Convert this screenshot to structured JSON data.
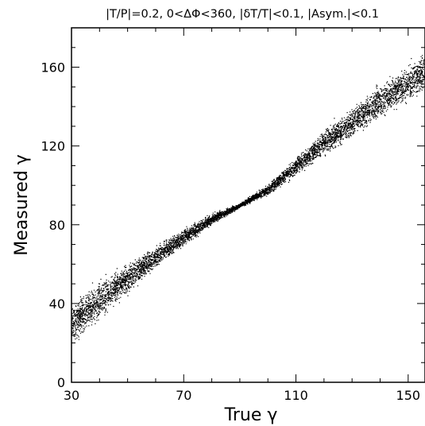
{
  "chart_data": {
    "type": "scatter",
    "title": "|T/P|=0.2, 0<ΔΦ<360, |δT/T|<0.1, |Asym.|<0.1",
    "xlabel": "True γ",
    "ylabel": "Measured γ",
    "xlim": [
      30,
      156
    ],
    "ylim": [
      0,
      180
    ],
    "xticks": [
      30,
      70,
      110,
      150
    ],
    "yticks": [
      0,
      40,
      80,
      120,
      160
    ],
    "x_minor_step": 10,
    "y_minor_step": 10,
    "grid": false,
    "legend": "none",
    "point_color": "#000000",
    "band": [
      {
        "x": 30,
        "center": 30,
        "halfwidth": 9
      },
      {
        "x": 40,
        "center": 42,
        "halfwidth": 9
      },
      {
        "x": 50,
        "center": 53,
        "halfwidth": 7
      },
      {
        "x": 60,
        "center": 64,
        "halfwidth": 5
      },
      {
        "x": 70,
        "center": 74,
        "halfwidth": 4
      },
      {
        "x": 80,
        "center": 83,
        "halfwidth": 2.5
      },
      {
        "x": 90,
        "center": 90,
        "halfwidth": 1
      },
      {
        "x": 100,
        "center": 98,
        "halfwidth": 2.5
      },
      {
        "x": 110,
        "center": 110,
        "halfwidth": 4
      },
      {
        "x": 120,
        "center": 122,
        "halfwidth": 6
      },
      {
        "x": 130,
        "center": 132,
        "halfwidth": 7
      },
      {
        "x": 140,
        "center": 143,
        "halfwidth": 8
      },
      {
        "x": 150,
        "center": 152,
        "halfwidth": 9
      },
      {
        "x": 156,
        "center": 158,
        "halfwidth": 9
      }
    ]
  }
}
